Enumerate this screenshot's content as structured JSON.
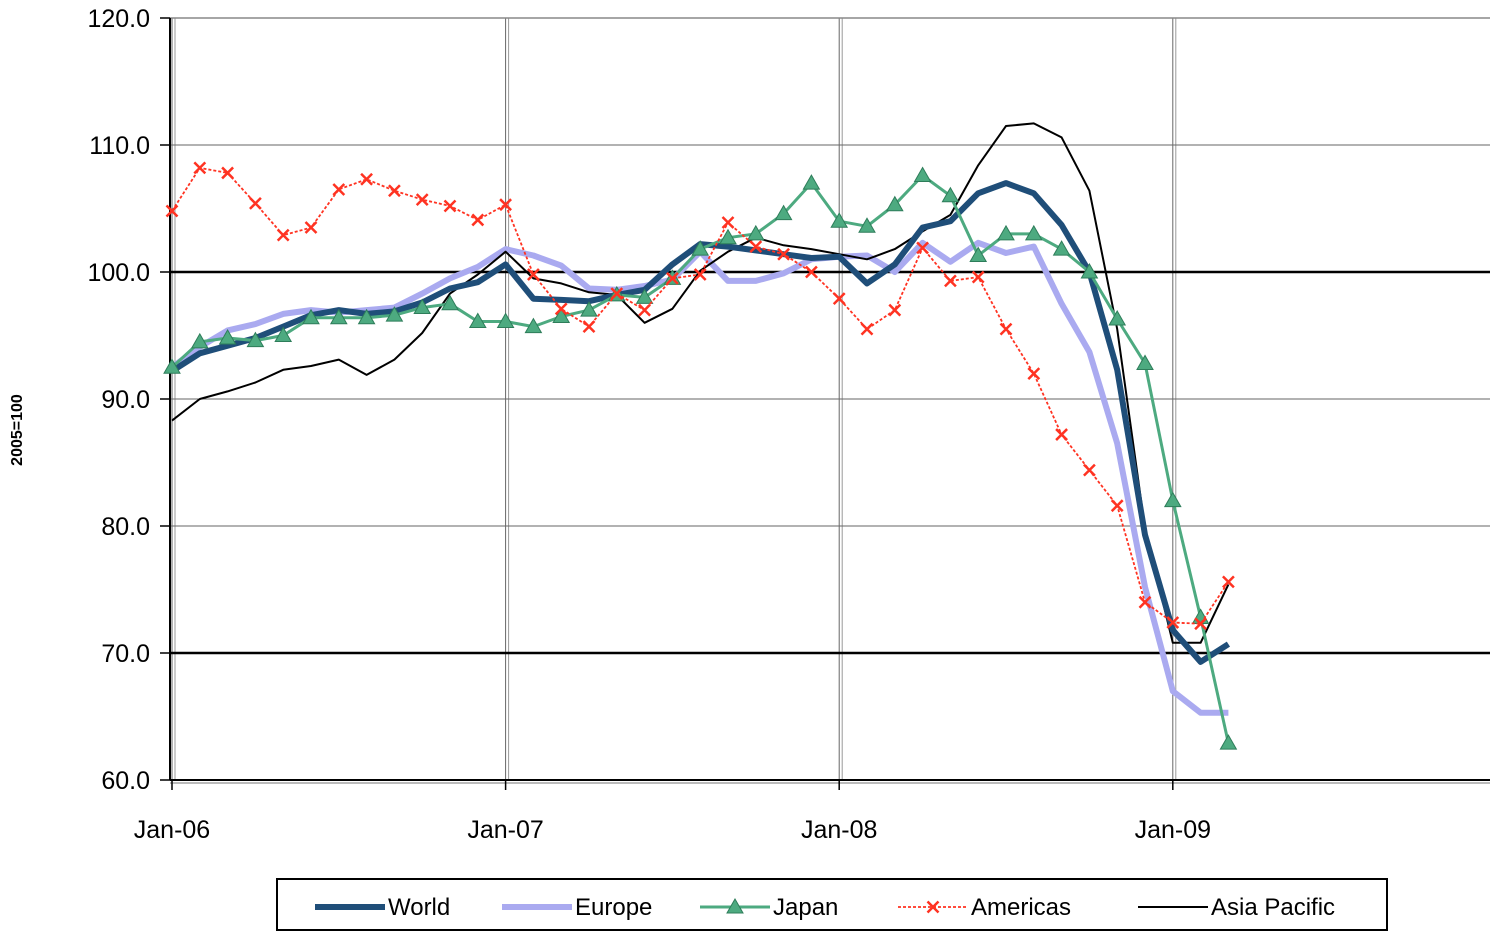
{
  "chart_data": {
    "type": "line",
    "title": "",
    "xlabel": "",
    "ylabel": "2005=100",
    "ylim": [
      60,
      120
    ],
    "yticks": [
      "60.0",
      "70.0",
      "80.0",
      "90.0",
      "100.0",
      "110.0",
      "120.0"
    ],
    "xticks": [
      "Jan-06",
      "Jan-07",
      "Jan-08",
      "Jan-09"
    ],
    "x": [
      "Jan-06",
      "Feb-06",
      "Mar-06",
      "Apr-06",
      "May-06",
      "Jun-06",
      "Jul-06",
      "Aug-06",
      "Sep-06",
      "Oct-06",
      "Nov-06",
      "Dec-06",
      "Jan-07",
      "Feb-07",
      "Mar-07",
      "Apr-07",
      "May-07",
      "Jun-07",
      "Jul-07",
      "Aug-07",
      "Sep-07",
      "Oct-07",
      "Nov-07",
      "Dec-07",
      "Jan-08",
      "Feb-08",
      "Mar-08",
      "Apr-08",
      "May-08",
      "Jun-08",
      "Jul-08",
      "Aug-08",
      "Sep-08",
      "Oct-08",
      "Nov-08",
      "Dec-08",
      "Jan-09",
      "Feb-09",
      "Mar-09"
    ],
    "grid": {
      "vertical": true,
      "horizontal_major": [
        70,
        100
      ]
    },
    "legend_position": "bottom",
    "series": [
      {
        "name": "World",
        "color": "#1f4e79",
        "style": "thick",
        "values": [
          92.2,
          93.6,
          94.2,
          94.8,
          95.7,
          96.6,
          97.0,
          96.7,
          96.9,
          97.6,
          98.7,
          99.2,
          100.6,
          97.9,
          97.8,
          97.7,
          98.2,
          98.6,
          100.6,
          102.2,
          102.0,
          101.7,
          101.4,
          101.1,
          101.2,
          99.1,
          100.6,
          103.5,
          104.0,
          106.2,
          107.0,
          106.2,
          103.7,
          100.0,
          92.3,
          79.3,
          71.8,
          69.3,
          70.7
        ]
      },
      {
        "name": "Europe",
        "color": "#aaaaf0",
        "style": "thick",
        "values": [
          92.5,
          94.1,
          95.4,
          95.9,
          96.7,
          97.0,
          96.8,
          97.0,
          97.2,
          98.3,
          99.5,
          100.4,
          101.8,
          101.3,
          100.5,
          98.7,
          98.6,
          98.9,
          99.4,
          101.6,
          99.3,
          99.3,
          99.9,
          101.0,
          101.2,
          101.3,
          100.0,
          102.3,
          100.8,
          102.3,
          101.5,
          102.0,
          97.5,
          93.7,
          86.5,
          75.2,
          67.0,
          65.3,
          65.3
        ]
      },
      {
        "name": "Japan",
        "color": "#4daa80",
        "style": "triangle",
        "values": [
          92.5,
          94.5,
          94.8,
          94.6,
          95.0,
          96.4,
          96.4,
          96.4,
          96.6,
          97.2,
          97.5,
          96.1,
          96.1,
          95.7,
          96.5,
          97.0,
          98.2,
          98.0,
          99.5,
          101.8,
          102.7,
          103.0,
          104.6,
          107.0,
          104.0,
          103.6,
          105.3,
          107.6,
          106.0,
          101.3,
          103.0,
          103.0,
          101.8,
          100.0,
          96.3,
          92.8,
          82.0,
          72.8,
          62.9
        ]
      },
      {
        "name": "Americas",
        "color": "#ff3322",
        "style": "cross",
        "values": [
          104.8,
          108.2,
          107.8,
          105.4,
          102.9,
          103.5,
          106.5,
          107.3,
          106.4,
          105.7,
          105.2,
          104.1,
          105.3,
          99.8,
          97.1,
          95.7,
          98.3,
          97.0,
          99.5,
          99.8,
          103.9,
          102.0,
          101.4,
          100.0,
          97.9,
          95.5,
          97.0,
          101.9,
          99.3,
          99.6,
          95.5,
          92.0,
          87.2,
          84.4,
          81.6,
          74.0,
          72.4,
          72.3,
          75.6
        ]
      },
      {
        "name": "Asia Pacific",
        "color": "#000000",
        "style": "thin",
        "values": [
          88.3,
          90.0,
          90.6,
          91.3,
          92.3,
          92.6,
          93.1,
          91.9,
          93.1,
          95.2,
          98.3,
          99.8,
          101.6,
          99.5,
          99.1,
          98.4,
          98.2,
          96.0,
          97.1,
          100.1,
          101.6,
          102.7,
          102.1,
          101.8,
          101.4,
          101.0,
          101.8,
          103.2,
          104.5,
          108.4,
          111.5,
          111.7,
          110.6,
          106.4,
          95.5,
          79.8,
          70.8,
          70.8,
          75.4
        ]
      }
    ]
  }
}
